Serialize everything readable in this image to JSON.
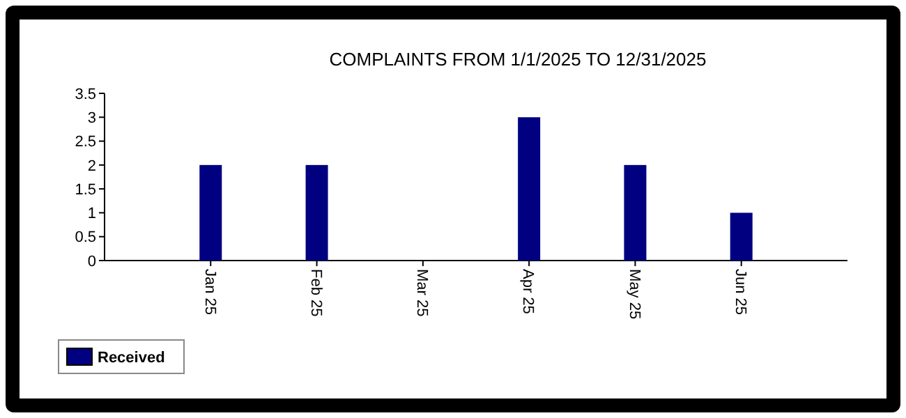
{
  "chart_data": {
    "type": "bar",
    "title": "COMPLAINTS FROM 1/1/2025 TO 12/31/2025",
    "categories": [
      "Jan 25",
      "Feb 25",
      "Mar 25",
      "Apr 25",
      "May 25",
      "Jun 25"
    ],
    "series": [
      {
        "name": "Received",
        "color": "#000080",
        "values": [
          2,
          2,
          0,
          3,
          2,
          1
        ]
      }
    ],
    "ylim": [
      0,
      3.5
    ],
    "yticks": [
      0,
      0.5,
      1,
      1.5,
      2,
      2.5,
      3,
      3.5
    ],
    "grid": false,
    "legend": "bottom left"
  }
}
